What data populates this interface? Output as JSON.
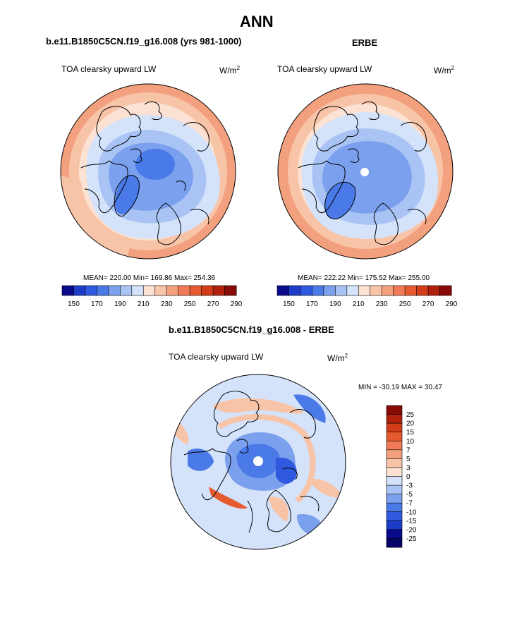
{
  "page": {
    "title": "ANN",
    "panel_left": {
      "case": "b.e11.B1850C5CN.f19_g16.008 (yrs 981-1000)",
      "field": "TOA clearsky upward LW",
      "units_base": "W/m",
      "units_exp": "2",
      "stats": "MEAN= 220.00  Min= 169.86  Max= 254.36"
    },
    "panel_right": {
      "case": "ERBE",
      "field": "TOA clearsky upward LW",
      "units_base": "W/m",
      "units_exp": "2",
      "stats": "MEAN= 222.22  Min= 175.52  Max= 255.00"
    },
    "panel_diff": {
      "case": "b.e11.B1850C5CN.f19_g16.008 - ERBE",
      "field": "TOA clearsky upward LW",
      "units_base": "W/m",
      "units_exp": "2",
      "stats": "MIN = -30.19 MAX =  30.47"
    }
  },
  "colorbar_abs": {
    "labels": [
      "150",
      "170",
      "190",
      "210",
      "230",
      "250",
      "270",
      "290"
    ],
    "colors": [
      "#0a0a8c",
      "#1c3cc8",
      "#2f5ae0",
      "#4a7ae8",
      "#7aa0ee",
      "#a9c4f4",
      "#d4e2fa",
      "#fbe2d2",
      "#f8c4a8",
      "#f4a07e",
      "#f07a56",
      "#e65a30",
      "#d23c18",
      "#b0220c",
      "#880a06"
    ]
  },
  "colorbar_diff": {
    "labels": [
      "25",
      "20",
      "15",
      "10",
      "7",
      "5",
      "3",
      "0",
      "-3",
      "-5",
      "-7",
      "-10",
      "-15",
      "-20",
      "-25"
    ],
    "colors": [
      "#880a06",
      "#b0220c",
      "#d23c18",
      "#e65a30",
      "#f07a56",
      "#f4a07e",
      "#f8c4a8",
      "#fbe2d2",
      "#d4e2fa",
      "#a9c4f4",
      "#7aa0ee",
      "#4a7ae8",
      "#2f5ae0",
      "#1c3cc8",
      "#0a0a8c",
      "#05056a"
    ]
  },
  "map_colors": {
    "warm_outer": "#f3a07e",
    "warm_mid": "#f8c4a8",
    "warm_light": "#fbe2d2",
    "cool_light": "#d4e2fa",
    "cool_mid": "#a9c4f4",
    "cool": "#7aa0ee",
    "cool_deep": "#4a7ae8",
    "cool_deeper": "#2f5ae0",
    "hot": "#e65a30",
    "coast": "#000000"
  }
}
